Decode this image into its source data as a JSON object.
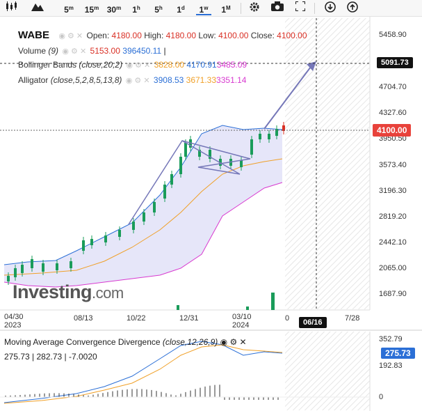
{
  "toolbar": {
    "items": [
      {
        "name": "candles-icon",
        "label": ""
      },
      {
        "name": "mountain-icon",
        "label": ""
      },
      {
        "name": "interval-5m",
        "label": "5",
        "sup": "m"
      },
      {
        "name": "interval-15m",
        "label": "15",
        "sup": "m"
      },
      {
        "name": "interval-30m",
        "label": "30",
        "sup": "m"
      },
      {
        "name": "interval-1h",
        "label": "1",
        "sup": "h"
      },
      {
        "name": "interval-5h",
        "label": "5",
        "sup": "h"
      },
      {
        "name": "interval-1d",
        "label": "1",
        "sup": "d"
      },
      {
        "name": "interval-1w",
        "label": "1",
        "sup": "w"
      },
      {
        "name": "interval-1M",
        "label": "1",
        "sup": "M"
      }
    ],
    "active": "1w"
  },
  "legend": {
    "symbol": "WABE",
    "open_label": "Open:",
    "open": "4180.00",
    "high_label": "High:",
    "high": "4180.00",
    "low_label": "Low:",
    "low": "4100.00",
    "close_label": "Close:",
    "close": "4100.00",
    "volume_name": "Volume",
    "volume_param": "(9)",
    "volume_v1": "5153.00",
    "volume_v2": "396450.11",
    "bb_name": "Bollinger Bands",
    "bb_param": "(close,20,2)",
    "bb_v1": "3828.00",
    "bb_v2": "4170.91",
    "bb_v3": "3485.09",
    "all_name": "Alligator",
    "all_param": "(close,5,2,8,5,13,8)",
    "all_v1": "3908.53",
    "all_v2": "3671.33",
    "all_v3": "3351.14"
  },
  "price_axis": [
    "5458.90",
    "4704.70",
    "4327.60",
    "3950.50",
    "3573.40",
    "3196.30",
    "2819.20",
    "2442.10",
    "2065.00",
    "1687.90"
  ],
  "tags": {
    "crosshair_price": "5091.73",
    "last_price": "4100.00",
    "crosshair_date": "06/16"
  },
  "date_axis": [
    {
      "t": "04/30",
      "sub": "2023"
    },
    {
      "t": "08/13",
      "sub": ""
    },
    {
      "t": "10/22",
      "sub": ""
    },
    {
      "t": "12/31",
      "sub": ""
    },
    {
      "t": "03/10",
      "sub": "2024"
    },
    {
      "t": "0",
      "sub": ""
    },
    {
      "t": "7/28",
      "sub": ""
    }
  ],
  "watermark": {
    "brand": "Investing",
    "suffix": ".com"
  },
  "macd": {
    "name": "Moving Average Convergence Divergence",
    "param": "(close,12,26,9)",
    "v1": "275.73",
    "v2": "282.73",
    "v3": "-7.0020",
    "axis": [
      "352.79",
      "192.83",
      "0"
    ],
    "tag": "275.73"
  },
  "colors": {
    "up": "#1a9c5a",
    "down": "#d93025",
    "bb_upper": "#2b6fd6",
    "bb_mid": "#f0a028",
    "bb_lower": "#d83ad0",
    "macd": "#2b6fd6",
    "signal": "#f0a028",
    "accent": "#2b6fd6"
  }
}
